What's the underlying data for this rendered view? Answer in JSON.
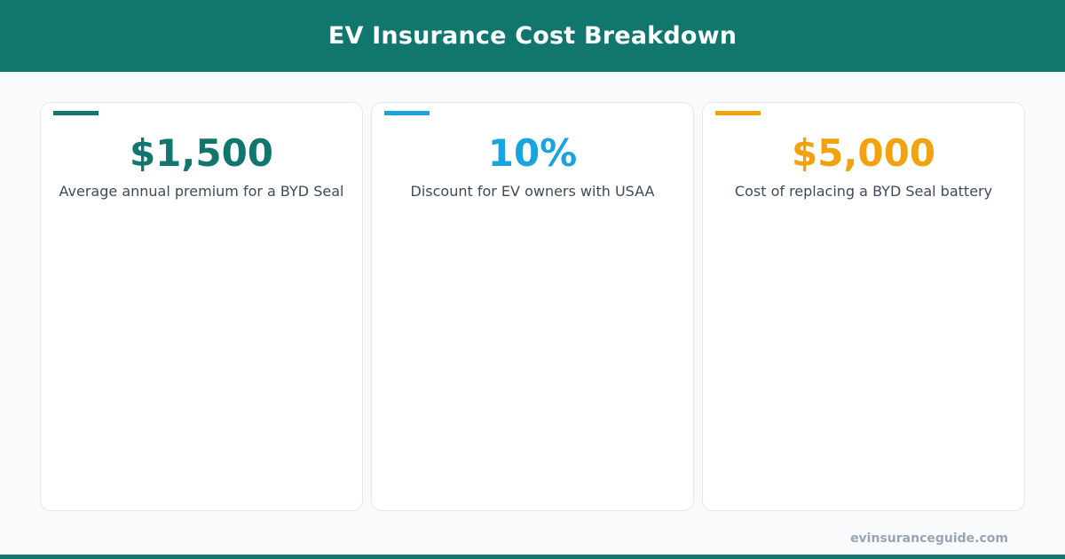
{
  "header": {
    "title": "EV Insurance Cost Breakdown"
  },
  "cards": [
    {
      "value": "$1,500",
      "label": "Average annual premium for a BYD Seal",
      "accent_color": "#11776e"
    },
    {
      "value": "10%",
      "label": "Discount for EV owners with USAA",
      "accent_color": "#19a4e0"
    },
    {
      "value": "$5,000",
      "label": "Cost of replacing a BYD Seal battery",
      "accent_color": "#f2a20f"
    }
  ],
  "footer": {
    "domain": "evinsuranceguide.com"
  },
  "colors": {
    "brand": "#11776e",
    "background": "#f8fafc"
  }
}
